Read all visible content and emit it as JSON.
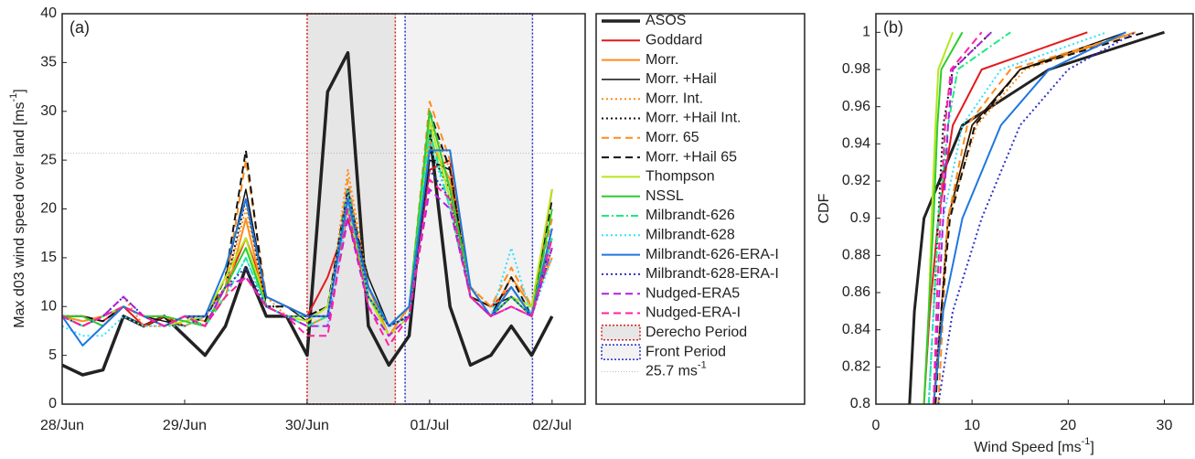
{
  "chart_data": [
    {
      "type": "line",
      "panel": "(a)",
      "ylabel": "Max d03 wind speed over land [ms",
      "ylabel_sup": "-1",
      "ylabel_end": "]",
      "xlim": [
        0,
        4.27
      ],
      "ylim": [
        0,
        40
      ],
      "xticks": [
        {
          "value": 0,
          "label": "28/Jun"
        },
        {
          "value": 1,
          "label": "29/Jun"
        },
        {
          "value": 2,
          "label": "30/Jun"
        },
        {
          "value": 3,
          "label": "01/Jul"
        },
        {
          "value": 4,
          "label": "02/Jul"
        }
      ],
      "yticks": [
        0,
        5,
        10,
        15,
        20,
        25,
        30,
        35,
        40
      ],
      "x": [
        0,
        0.167,
        0.333,
        0.5,
        0.667,
        0.833,
        1,
        1.167,
        1.333,
        1.5,
        1.667,
        1.833,
        2,
        2.167,
        2.333,
        2.5,
        2.667,
        2.833,
        3,
        3.167,
        3.333,
        3.5,
        3.667,
        3.833,
        4
      ],
      "periods": [
        {
          "name": "Derecho Period",
          "start": 2.0,
          "end": 2.72,
          "color": "#d42020",
          "fill": "#e6e6e6"
        },
        {
          "name": "Front Period",
          "start": 2.8,
          "end": 3.84,
          "color": "#2030c8",
          "fill": "#f2f2f2"
        }
      ],
      "reference": {
        "value": 25.7,
        "label": "25.7 ms",
        "label_sup": "-1",
        "color": "#aaaaaa"
      },
      "series": [
        {
          "name": "ASOS",
          "color": "#222222",
          "style": "solid",
          "width": 3.5,
          "values": [
            4,
            3,
            3.5,
            9,
            8,
            9,
            7,
            5,
            8,
            14,
            9,
            9,
            5,
            32,
            36,
            8,
            4,
            7,
            28,
            10,
            4,
            5,
            8,
            5,
            9
          ]
        },
        {
          "name": "Goddard",
          "color": "#e41a1c",
          "style": "solid",
          "width": 2,
          "values": [
            9,
            9,
            8.5,
            10,
            8,
            9,
            8,
            9,
            12,
            17,
            11,
            10,
            9,
            13,
            19,
            11,
            8,
            9,
            24,
            25,
            11,
            10,
            12,
            9,
            22
          ]
        },
        {
          "name": "Morr.",
          "color": "#ff8c1a",
          "style": "solid",
          "width": 2,
          "values": [
            9,
            8.5,
            9,
            10,
            9,
            8,
            9,
            8.5,
            11,
            19,
            10,
            9,
            8,
            9,
            22,
            12,
            7,
            10,
            27,
            23,
            12,
            9,
            13,
            10,
            15
          ]
        },
        {
          "name": "Morr. +Hail",
          "color": "#111111",
          "style": "solid",
          "width": 1.5,
          "values": [
            9,
            9,
            8,
            10,
            9,
            8.5,
            8,
            9,
            13,
            22,
            11,
            10,
            8.5,
            10,
            21,
            13,
            8,
            9,
            25,
            24,
            11,
            10,
            11,
            9,
            17
          ]
        },
        {
          "name": "Morr. Int.",
          "color": "#ff8c1a",
          "style": "dotted",
          "width": 2,
          "values": [
            9,
            8,
            9,
            11,
            8,
            8,
            9,
            9,
            12,
            20,
            11,
            9,
            9,
            9,
            24,
            12,
            8,
            10,
            29,
            24,
            12,
            10,
            12,
            9,
            16
          ]
        },
        {
          "name": "Morr. +Hail Int.",
          "color": "#111111",
          "style": "dotted",
          "width": 2,
          "values": [
            9,
            9,
            8,
            10,
            9,
            8,
            9,
            8,
            12,
            21,
            10,
            10,
            9,
            10,
            20,
            12,
            8,
            9,
            26,
            22,
            11,
            9,
            11,
            9,
            18
          ]
        },
        {
          "name": "Morr. 65",
          "color": "#ff8c1a",
          "style": "dashed",
          "width": 2,
          "values": [
            9,
            8.5,
            9,
            10,
            9,
            9,
            8,
            9,
            12,
            25,
            11,
            10,
            9,
            9,
            23,
            11,
            8,
            10,
            31,
            25,
            12,
            10,
            14,
            10,
            19
          ]
        },
        {
          "name": "Morr. +Hail 65",
          "color": "#111111",
          "style": "dashed",
          "width": 2,
          "values": [
            9,
            9,
            8.5,
            10,
            9,
            8,
            9,
            8.5,
            13,
            26,
            10,
            10,
            9,
            10,
            22,
            12,
            8,
            9,
            30,
            24,
            11,
            9,
            13,
            9,
            21
          ]
        },
        {
          "name": "Thompson",
          "color": "#b5e61d",
          "style": "solid",
          "width": 2,
          "values": [
            9,
            8,
            9,
            10,
            9,
            8,
            8.5,
            9,
            13,
            17,
            10,
            9,
            8.5,
            10,
            20,
            11,
            7,
            9,
            29,
            21,
            11,
            9,
            11,
            10,
            22
          ]
        },
        {
          "name": "NSSL",
          "color": "#2ecc2e",
          "style": "solid",
          "width": 2,
          "values": [
            9,
            9,
            8,
            10,
            9,
            9,
            8.5,
            8,
            12,
            16,
            10,
            9,
            9,
            9,
            21,
            11,
            8,
            10,
            30,
            22,
            12,
            9,
            11,
            9,
            20
          ]
        },
        {
          "name": "Milbrandt-626",
          "color": "#1de982",
          "style": "dashdot",
          "width": 2,
          "values": [
            9,
            8,
            9,
            10,
            9,
            8,
            9,
            8,
            11,
            15,
            10,
            9,
            8,
            9,
            22,
            11,
            8,
            10,
            28,
            20,
            11,
            9,
            12,
            9,
            17
          ]
        },
        {
          "name": "Milbrandt-628",
          "color": "#33e0ff",
          "style": "dotted",
          "width": 2,
          "values": [
            8,
            7,
            7,
            9,
            8,
            8,
            8,
            9,
            11,
            15,
            10,
            9,
            8,
            8,
            20,
            12,
            8,
            9,
            27,
            20,
            12,
            9,
            16,
            9,
            15
          ]
        },
        {
          "name": "Milbrandt-626-ERA-I",
          "color": "#1f77e0",
          "style": "solid",
          "width": 2,
          "values": [
            9,
            6,
            8,
            10,
            9,
            8,
            9,
            9,
            14,
            21,
            11,
            10,
            9,
            9,
            21,
            12,
            8,
            10,
            26,
            26,
            12,
            9,
            12,
            9,
            18
          ]
        },
        {
          "name": "Milbrandt-628-ERA-I",
          "color": "#3030c8",
          "style": "dotted",
          "width": 2,
          "values": [
            9,
            8,
            9,
            11,
            9,
            8,
            9,
            9,
            12,
            14,
            10,
            9,
            9,
            9,
            22,
            11,
            8,
            9,
            24,
            21,
            11,
            9,
            11,
            9,
            16
          ]
        },
        {
          "name": "Nudged-ERA5",
          "color": "#b020e0",
          "style": "dashed",
          "width": 2,
          "values": [
            9,
            8,
            9,
            11,
            9,
            8,
            9,
            8,
            12,
            13,
            10,
            9,
            8,
            8,
            19,
            10,
            7,
            9,
            22,
            20,
            11,
            9,
            10,
            9,
            16
          ]
        },
        {
          "name": "Nudged-ERA-I",
          "color": "#ff20a0",
          "style": "dashed",
          "width": 2,
          "values": [
            9,
            8,
            9,
            10,
            9,
            8,
            9,
            8,
            11,
            13,
            10,
            9,
            7,
            7,
            20,
            10,
            6,
            9,
            23,
            21,
            11,
            9,
            10,
            9,
            17
          ]
        }
      ]
    },
    {
      "type": "line",
      "panel": "(b)",
      "ylabel": "CDF",
      "xlabel": "Wind Speed [ms",
      "xlabel_sup": "-1",
      "xlabel_end": "]",
      "xlim": [
        0,
        33
      ],
      "ylim": [
        0.8,
        1.01
      ],
      "xticks": [
        0,
        10,
        20,
        30
      ],
      "yticks": [
        0.8,
        0.82,
        0.84,
        0.86,
        0.88,
        0.9,
        0.92,
        0.94,
        0.96,
        0.98,
        1
      ],
      "series": [
        {
          "color": "#222222",
          "style": "solid",
          "width": 3,
          "x": [
            3.5,
            4,
            5,
            9,
            18,
            30
          ],
          "values": [
            0.8,
            0.85,
            0.9,
            0.95,
            0.98,
            1
          ]
        },
        {
          "color": "#e41a1c",
          "style": "solid",
          "width": 2,
          "x": [
            5,
            5.6,
            6.5,
            8,
            11,
            22
          ],
          "values": [
            0.8,
            0.85,
            0.9,
            0.95,
            0.98,
            1
          ]
        },
        {
          "color": "#ff8c1a",
          "style": "solid",
          "width": 2,
          "x": [
            6,
            6.8,
            7.5,
            10,
            15,
            27
          ],
          "values": [
            0.8,
            0.85,
            0.9,
            0.95,
            0.98,
            1
          ]
        },
        {
          "color": "#111111",
          "style": "solid",
          "width": 1.5,
          "x": [
            6,
            6.8,
            7.5,
            10,
            15,
            26
          ],
          "values": [
            0.8,
            0.85,
            0.9,
            0.95,
            0.98,
            1
          ]
        },
        {
          "color": "#ff8c1a",
          "style": "dotted",
          "width": 2,
          "x": [
            6,
            6.8,
            7.5,
            10.5,
            15.5,
            27
          ],
          "values": [
            0.8,
            0.85,
            0.9,
            0.95,
            0.98,
            1
          ]
        },
        {
          "color": "#111111",
          "style": "dotted",
          "width": 2,
          "x": [
            5.5,
            6,
            6.5,
            7,
            8,
            12
          ],
          "values": [
            0.8,
            0.85,
            0.9,
            0.95,
            0.98,
            1
          ]
        },
        {
          "color": "#ff8c1a",
          "style": "dashed",
          "width": 2,
          "x": [
            6.5,
            7,
            7.5,
            9.5,
            14,
            27
          ],
          "values": [
            0.8,
            0.85,
            0.9,
            0.95,
            0.98,
            1
          ]
        },
        {
          "color": "#111111",
          "style": "dashed",
          "width": 2,
          "x": [
            6.2,
            6.8,
            7.7,
            10.3,
            15,
            28
          ],
          "values": [
            0.8,
            0.85,
            0.9,
            0.95,
            0.98,
            1
          ]
        },
        {
          "color": "#b5e61d",
          "style": "solid",
          "width": 2,
          "x": [
            5,
            5.5,
            5.8,
            6.2,
            6.5,
            8
          ],
          "values": [
            0.8,
            0.85,
            0.9,
            0.95,
            0.98,
            1
          ]
        },
        {
          "color": "#2ecc2e",
          "style": "solid",
          "width": 2,
          "x": [
            5,
            5.5,
            6,
            6.4,
            6.8,
            9
          ],
          "values": [
            0.8,
            0.85,
            0.9,
            0.95,
            0.98,
            1
          ]
        },
        {
          "color": "#1de982",
          "style": "dashdot",
          "width": 2,
          "x": [
            5.5,
            6,
            6.5,
            7.5,
            8.5,
            14
          ],
          "values": [
            0.8,
            0.85,
            0.9,
            0.95,
            0.98,
            1
          ]
        },
        {
          "color": "#33e0ff",
          "style": "dotted",
          "width": 2,
          "x": [
            5.5,
            6,
            7,
            9,
            13,
            24
          ],
          "values": [
            0.8,
            0.85,
            0.9,
            0.95,
            0.98,
            1
          ]
        },
        {
          "color": "#1f77e0",
          "style": "solid",
          "width": 2,
          "x": [
            6,
            7,
            9,
            13,
            18,
            26
          ],
          "values": [
            0.8,
            0.85,
            0.9,
            0.95,
            0.98,
            1
          ]
        },
        {
          "color": "#3030c8",
          "style": "dotted",
          "width": 2,
          "x": [
            6.5,
            8,
            11,
            15,
            20,
            27
          ],
          "values": [
            0.8,
            0.85,
            0.9,
            0.95,
            0.98,
            1
          ]
        },
        {
          "color": "#b020e0",
          "style": "dashed",
          "width": 2,
          "x": [
            6,
            6.5,
            7,
            7.5,
            8,
            12
          ],
          "values": [
            0.8,
            0.85,
            0.9,
            0.95,
            0.98,
            1
          ]
        },
        {
          "color": "#ff20a0",
          "style": "dashed",
          "width": 2,
          "x": [
            6,
            6.3,
            6.7,
            7.2,
            7.8,
            11
          ],
          "values": [
            0.8,
            0.85,
            0.9,
            0.95,
            0.98,
            1
          ]
        }
      ]
    }
  ]
}
